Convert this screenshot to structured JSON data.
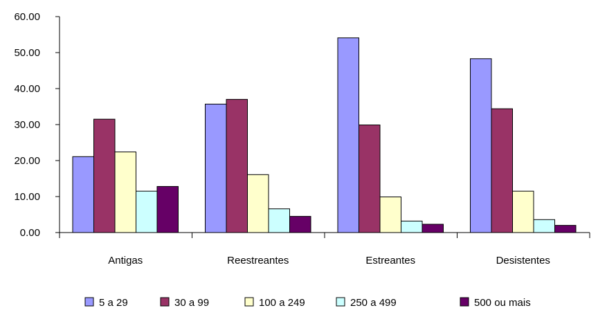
{
  "chart_data": {
    "type": "bar",
    "categories": [
      "Antigas",
      "Reestreantes",
      "Estreantes",
      "Desistentes"
    ],
    "series": [
      {
        "name": "5 a 29",
        "color": "#9999ff",
        "values": [
          21.1,
          35.7,
          54.1,
          48.3
        ]
      },
      {
        "name": "30 a 99",
        "color": "#993366",
        "values": [
          31.5,
          37.0,
          29.9,
          34.4
        ]
      },
      {
        "name": "100 a 249",
        "color": "#ffffcc",
        "values": [
          22.4,
          16.1,
          9.9,
          11.5
        ]
      },
      {
        "name": "250 a 499",
        "color": "#ccffff",
        "values": [
          11.5,
          6.6,
          3.2,
          3.6
        ]
      },
      {
        "name": "500 ou mais",
        "color": "#660066",
        "values": [
          12.8,
          4.5,
          2.3,
          2.0
        ]
      }
    ],
    "y_ticks": [
      "0.00",
      "10.00",
      "20.00",
      "30.00",
      "40.00",
      "50.00",
      "60.00"
    ],
    "ylim": [
      0,
      60
    ],
    "grid": false,
    "legend_position": "bottom"
  }
}
